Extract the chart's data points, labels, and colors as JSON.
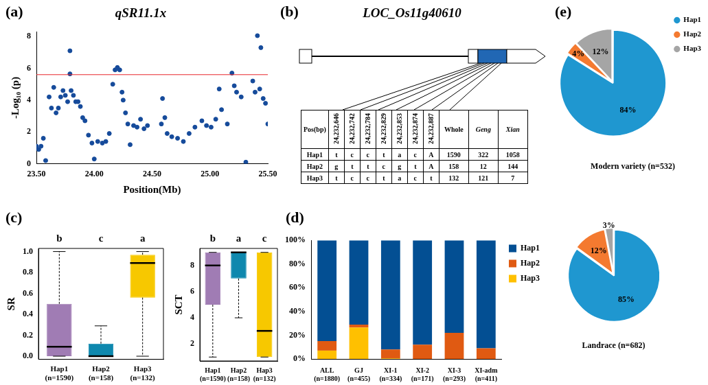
{
  "chart_data": [
    {
      "type": "scatter",
      "title": "qSR11.1x",
      "xlabel": "Position(Mb)",
      "ylabel": "-Log₁₀ (p)",
      "annotations": [
        "(a)"
      ],
      "xlim": [
        23.5,
        25.5
      ],
      "xticks": [
        {
          "value": 23.5,
          "label": "23.50"
        },
        {
          "value": 24,
          "label": "24.00"
        },
        {
          "value": 24.5,
          "label": "24.50"
        },
        {
          "value": 25,
          "label": "25.00"
        },
        {
          "value": 25.5,
          "label": "25.50"
        }
      ],
      "ylim": [
        0,
        8.3
      ],
      "yticks": [
        0,
        2,
        4,
        6,
        8
      ],
      "marker": "circle",
      "ref_lines": [
        {
          "axis": "y",
          "value": 5.6,
          "color": "#e8252b"
        }
      ],
      "series": [
        {
          "color": "#164b9b",
          "x": [
            23.5,
            23.52,
            23.54,
            23.56,
            23.58,
            23.61,
            23.63,
            23.65,
            23.67,
            23.69,
            23.71,
            23.73,
            23.75,
            23.77,
            23.79,
            23.79,
            23.8,
            23.82,
            23.84,
            23.86,
            23.88,
            23.9,
            23.92,
            23.95,
            23.98,
            24.0,
            24.03,
            24.07,
            24.1,
            24.13,
            24.16,
            24.18,
            24.2,
            24.22,
            24.24,
            24.25,
            24.27,
            24.29,
            24.31,
            24.34,
            24.37,
            24.4,
            24.43,
            24.46,
            24.58,
            24.59,
            24.61,
            24.63,
            24.67,
            24.72,
            24.77,
            24.82,
            24.87,
            24.93,
            24.97,
            25.01,
            25.05,
            25.08,
            25.1,
            25.15,
            25.19,
            25.21,
            25.23,
            25.27,
            25.31,
            25.37,
            25.39,
            25.41,
            25.43,
            25.44,
            25.46,
            25.48,
            25.5
          ],
          "values": [
            1.1,
            0.9,
            1.1,
            1.6,
            0.2,
            4.2,
            3.5,
            4.8,
            3.2,
            3.5,
            4.2,
            4.6,
            4.3,
            3.9,
            7.1,
            5.65,
            4.6,
            4.3,
            3.9,
            3.9,
            3.6,
            2.9,
            2.7,
            1.8,
            1.3,
            0.3,
            1.4,
            1.3,
            1.4,
            1.9,
            5.0,
            5.9,
            6.05,
            5.9,
            4.5,
            4.0,
            3.2,
            2.5,
            1.2,
            2.4,
            2.3,
            2.8,
            2.2,
            2.4,
            2.5,
            4.1,
            2.9,
            1.9,
            1.7,
            1.6,
            1.4,
            1.9,
            2.3,
            2.7,
            2.4,
            2.3,
            2.8,
            4.7,
            3.4,
            2.5,
            5.7,
            4.9,
            4.5,
            4.2,
            0.1,
            5.2,
            4.5,
            8.05,
            4.7,
            7.3,
            4.1,
            3.8,
            2.5
          ]
        }
      ]
    },
    {
      "type": "other",
      "title": "LOC_Os11g40610",
      "annotations": [
        "(b)"
      ],
      "categories": [
        "Pos(bp)",
        "24,232,646",
        "24,232,742",
        "24,232,784",
        "24,232,829",
        "24,232,853",
        "24,232,874",
        "24,232,887",
        "Whole",
        "Geng",
        "Xian"
      ],
      "y_categories": [
        "Hap1",
        "Hap2",
        "Hap3"
      ],
      "cell_labels": [
        [
          "t",
          "c",
          "c",
          "t",
          "a",
          "c",
          "A",
          "1590",
          "322",
          "1058"
        ],
        [
          "g",
          "t",
          "t",
          "c",
          "g",
          "t",
          "A",
          "158",
          "12",
          "144"
        ],
        [
          "t",
          "c",
          "c",
          "t",
          "a",
          "c",
          "t",
          "132",
          "121",
          "7"
        ]
      ]
    },
    {
      "type": "box",
      "ylabel": "SR",
      "annotations": [
        "(c)",
        "b",
        "c",
        "a"
      ],
      "categories": [
        "Hap1\n(n=1590)",
        "Hap2\n(n=158)",
        "Hap3\n(n=132)"
      ],
      "colors": [
        "#a07cb4",
        "#0e88ae",
        "#f7c800"
      ],
      "ylim": [
        -0.03,
        1.03
      ],
      "yticks": [
        {
          "value": 0,
          "label": "0.0"
        },
        {
          "value": 0.2,
          "label": "0.2"
        },
        {
          "value": 0.4,
          "label": "0.4"
        },
        {
          "value": 0.6,
          "label": "0.6"
        },
        {
          "value": 0.8,
          "label": "0.8"
        },
        {
          "value": 1,
          "label": "1.0"
        }
      ],
      "boxes": [
        {
          "low": 0,
          "q1": 0,
          "median": 0.09,
          "q3": 0.5,
          "high": 1.0
        },
        {
          "low": 0,
          "q1": 0,
          "median": 0,
          "q3": 0.12,
          "high": 0.29
        },
        {
          "low": 0,
          "q1": 0.56,
          "median": 0.89,
          "q3": 0.97,
          "high": 1.0
        }
      ]
    },
    {
      "type": "box",
      "ylabel": "SCT",
      "annotations": [
        "b",
        "a",
        "c"
      ],
      "categories": [
        "Hap1\n(n=1590)",
        "Hap2\n(n=158)",
        "Hap3\n(n=132)"
      ],
      "colors": [
        "#a07cb4",
        "#0e88ae",
        "#f7c800"
      ],
      "ylim": [
        0.7,
        9.3
      ],
      "yticks": [
        2,
        4,
        6,
        8
      ],
      "boxes": [
        {
          "low": 1,
          "q1": 5,
          "median": 8,
          "q3": 9,
          "high": 9
        },
        {
          "low": 4,
          "q1": 7,
          "median": 9,
          "q3": 9,
          "high": 9
        },
        {
          "low": 1,
          "q1": 1,
          "median": 3,
          "q3": 9,
          "high": 9
        }
      ]
    },
    {
      "type": "bar",
      "stacked": true,
      "legend": "right",
      "annotations": [
        "(d)"
      ],
      "categories": [
        "ALL\n(n=1880)",
        "GJ\n(n=455)",
        "XI-1\n(n=334)",
        "XI-2\n(n=171)",
        "XI-3\n(n=293)",
        "XI-adm\n(n=411)"
      ],
      "ylim": [
        0,
        100
      ],
      "yticks": [
        {
          "value": 0,
          "label": "0%"
        },
        {
          "value": 20,
          "label": "20%"
        },
        {
          "value": 40,
          "label": "40%"
        },
        {
          "value": 60,
          "label": "60%"
        },
        {
          "value": 80,
          "label": "80%"
        },
        {
          "value": 100,
          "label": "100%"
        }
      ],
      "series": [
        {
          "name": "Hap3",
          "color": "#ffc000",
          "values": [
            7,
            26.5,
            0.5,
            0,
            0,
            0
          ]
        },
        {
          "name": "Hap2",
          "color": "#e05a12",
          "values": [
            8,
            2.5,
            7.5,
            12,
            22,
            9
          ]
        },
        {
          "name": "Hap1",
          "color": "#034f93",
          "values": [
            85,
            71,
            92,
            88,
            78,
            91
          ]
        }
      ]
    },
    {
      "type": "pie",
      "title": "Modern variety (n=532)",
      "legend": "top right",
      "annotations": [
        "(e)"
      ],
      "categories": [
        "Hap1",
        "Hap2",
        "Hap3"
      ],
      "values": [
        84,
        4,
        12
      ],
      "value_labels": [
        "84%",
        "4%",
        "12%"
      ],
      "colors": [
        "#1f97d0",
        "#f47a30",
        "#a5a5a5"
      ]
    },
    {
      "type": "pie",
      "title": "Landrace (n=682)",
      "values": [
        85,
        12,
        3
      ],
      "value_labels": [
        "85%",
        "12%",
        "3%"
      ],
      "colors": [
        "#1f97d0",
        "#f47a30",
        "#a5a5a5"
      ]
    }
  ]
}
